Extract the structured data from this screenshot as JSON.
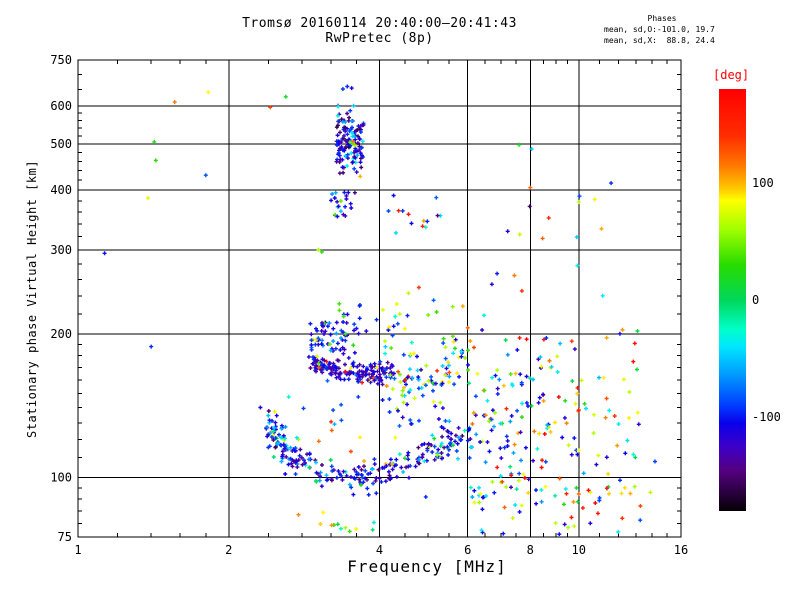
{
  "title": {
    "line1": "Tromsø 20160114 20:40:00–20:41:43",
    "line2": "RwPretec (8p)"
  },
  "stats": {
    "header": "Phases",
    "line1": "mean, sd,O:-101.0, 19.7",
    "line2": "mean, sd,X:  88.8, 24.4"
  },
  "chart_data": {
    "type": "scatter",
    "title": "Tromsø 20160114 20:40:00–20:41:43",
    "subtitle": "RwPretec (8p)",
    "xlabel": "Frequency [MHz]",
    "ylabel": "Stationary phase Virtual Height [km]",
    "x_scale": "log",
    "y_scale": "log",
    "xlim": [
      1,
      16
    ],
    "ylim": [
      75,
      750
    ],
    "x_major_ticks": [
      1,
      2,
      4,
      6,
      8,
      10,
      16
    ],
    "x_gridlines": [
      2,
      4,
      6,
      8,
      10
    ],
    "x_minor_ticks": [
      1.2,
      1.4,
      1.6,
      1.8,
      2.4,
      2.8,
      3.2,
      3.6,
      4.5,
      5,
      5.5,
      6.5,
      7,
      7.5,
      8.5,
      9,
      9.5,
      11,
      12,
      13,
      14,
      15
    ],
    "y_major_ticks": [
      75,
      100,
      200,
      300,
      400,
      500,
      600,
      750
    ],
    "y_gridlines": [
      100,
      200,
      300,
      400,
      500,
      600
    ],
    "y_minor_ticks": [
      80,
      85,
      90,
      95,
      110,
      120,
      130,
      140,
      150,
      160,
      170,
      180,
      190,
      220,
      240,
      260,
      280,
      320,
      340,
      360,
      380,
      420,
      440,
      460,
      480,
      520,
      540,
      560,
      580,
      650,
      700
    ],
    "grid": true,
    "frame_color": "#000000",
    "colorbar": {
      "label": "[deg]",
      "label_color": "#ff0000",
      "range": [
        -180,
        180
      ],
      "ticks": [
        {
          "value": 100,
          "label": "100"
        },
        {
          "value": 0,
          "label": "0"
        },
        {
          "value": -100,
          "label": "-100"
        }
      ]
    },
    "colormap_stops": [
      [
        -180,
        5,
        0,
        5
      ],
      [
        -165,
        40,
        0,
        60
      ],
      [
        -145,
        85,
        0,
        130
      ],
      [
        -125,
        60,
        0,
        200
      ],
      [
        -105,
        10,
        0,
        235
      ],
      [
        -90,
        0,
        60,
        255
      ],
      [
        -65,
        0,
        150,
        255
      ],
      [
        -40,
        0,
        230,
        255
      ],
      [
        -25,
        0,
        255,
        200
      ],
      [
        0,
        0,
        215,
        90
      ],
      [
        30,
        40,
        220,
        0
      ],
      [
        60,
        160,
        255,
        0
      ],
      [
        85,
        255,
        255,
        0
      ],
      [
        95,
        255,
        200,
        0
      ],
      [
        115,
        255,
        120,
        0
      ],
      [
        140,
        255,
        45,
        0
      ],
      [
        180,
        255,
        0,
        0
      ]
    ],
    "seed": 42,
    "clusters": [
      {
        "name": "lower-arc-trace",
        "type": "band",
        "n": 240,
        "path": [
          [
            2.38,
            133
          ],
          [
            2.52,
            118
          ],
          [
            2.72,
            108
          ],
          [
            3.0,
            103
          ],
          [
            3.35,
            100.5
          ],
          [
            3.75,
            100.5
          ],
          [
            4.15,
            103
          ],
          [
            4.6,
            108
          ],
          [
            5.1,
            113
          ],
          [
            5.6,
            119
          ],
          [
            6.1,
            124
          ]
        ],
        "f_jitter": 0.011,
        "h_jitter": 0.032,
        "phases": [
          [
            0.58,
            -125,
            -85
          ],
          [
            0.17,
            -155,
            -126
          ],
          [
            0.13,
            -70,
            -35
          ],
          [
            0.07,
            -25,
            25
          ],
          [
            0.05,
            55,
            105
          ]
        ]
      },
      {
        "name": "lower-arc-hook",
        "type": "blob",
        "n": 20,
        "f": [
          2.38,
          2.62
        ],
        "h": [
          115,
          136
        ],
        "phases": [
          [
            0.8,
            -125,
            -85
          ],
          [
            0.2,
            -70,
            -40
          ]
        ]
      },
      {
        "name": "mid-dense-band",
        "type": "band",
        "n": 175,
        "path": [
          [
            2.92,
            174
          ],
          [
            3.15,
            169
          ],
          [
            3.5,
            166
          ],
          [
            3.9,
            165
          ],
          [
            4.25,
            167
          ]
        ],
        "f_jitter": 0.009,
        "h_jitter": 0.022,
        "phases": [
          [
            0.62,
            -145,
            -105
          ],
          [
            0.28,
            -104,
            -78
          ],
          [
            0.06,
            30,
            90
          ],
          [
            0.04,
            120,
            175
          ]
        ]
      },
      {
        "name": "mid-rising-arc",
        "type": "band",
        "n": 85,
        "path": [
          [
            4.05,
            151
          ],
          [
            4.5,
            155
          ],
          [
            5.0,
            162
          ],
          [
            5.5,
            172
          ],
          [
            5.95,
            181
          ]
        ],
        "f_jitter": 0.014,
        "h_jitter": 0.05,
        "phases": [
          [
            0.38,
            -120,
            -82
          ],
          [
            0.14,
            -62,
            -30
          ],
          [
            0.2,
            20,
            70
          ],
          [
            0.2,
            70,
            110
          ],
          [
            0.08,
            115,
            170
          ]
        ]
      },
      {
        "name": "above-band-blob",
        "type": "blob",
        "n": 55,
        "f": [
          2.9,
          3.45
        ],
        "h": [
          184,
          212
        ],
        "phases": [
          [
            0.76,
            -132,
            -90
          ],
          [
            0.12,
            -85,
            -55
          ],
          [
            0.12,
            25,
            95
          ]
        ]
      },
      {
        "name": "above-band-right",
        "type": "blob",
        "n": 38,
        "f": [
          3.3,
          4.7
        ],
        "h": [
          178,
          232
        ],
        "phases": [
          [
            0.55,
            -125,
            -85
          ],
          [
            0.15,
            -60,
            -25
          ],
          [
            0.3,
            25,
            100
          ]
        ]
      },
      {
        "name": "spread-f-plume",
        "type": "blob",
        "n": 130,
        "f": [
          3.28,
          3.72
        ],
        "h": [
          398,
          648
        ],
        "bias_h": true,
        "phases": [
          [
            0.56,
            -125,
            -88
          ],
          [
            0.26,
            -162,
            -127
          ],
          [
            0.1,
            -62,
            -25
          ],
          [
            0.08,
            40,
            120
          ]
        ]
      },
      {
        "name": "plume-base",
        "type": "blob",
        "n": 22,
        "f": [
          3.2,
          3.62
        ],
        "h": [
          352,
          397
        ],
        "phases": [
          [
            0.7,
            -130,
            -90
          ],
          [
            0.15,
            -165,
            -135
          ],
          [
            0.08,
            30,
            85
          ],
          [
            0.07,
            -70,
            -40
          ]
        ]
      },
      {
        "name": "mid-right-scatter",
        "type": "blob",
        "n": 14,
        "f": [
          4.15,
          5.3
        ],
        "h": [
          322,
          400
        ],
        "phases": [
          [
            0.45,
            -120,
            -80
          ],
          [
            0.2,
            -60,
            -25
          ],
          [
            0.1,
            150,
            180
          ],
          [
            0.15,
            85,
            130
          ],
          [
            0.1,
            -162,
            -140
          ]
        ]
      },
      {
        "name": "between-arcs-right",
        "type": "blob",
        "n": 30,
        "f": [
          4.3,
          6.1
        ],
        "h": [
          108,
          145
        ],
        "phases": [
          [
            0.55,
            -120,
            -80
          ],
          [
            0.25,
            -70,
            -35
          ],
          [
            0.1,
            -20,
            25
          ],
          [
            0.1,
            60,
            100
          ]
        ]
      },
      {
        "name": "above-arc-left-sparse",
        "type": "blob",
        "n": 16,
        "f": [
          2.6,
          3.7
        ],
        "h": [
          112,
          148
        ],
        "phases": [
          [
            0.3,
            60,
            110
          ],
          [
            0.2,
            110,
            150
          ],
          [
            0.2,
            -60,
            -20
          ],
          [
            0.3,
            -110,
            -80
          ]
        ]
      },
      {
        "name": "right-broad-scatter",
        "type": "blob",
        "n": 150,
        "f": [
          6.0,
          13.2
        ],
        "h": [
          88,
          205
        ],
        "phases": [
          [
            0.3,
            -130,
            -85
          ],
          [
            0.15,
            -70,
            -30
          ],
          [
            0.12,
            -22,
            28
          ],
          [
            0.18,
            58,
            100
          ],
          [
            0.15,
            100,
            142
          ],
          [
            0.1,
            148,
            180
          ]
        ]
      },
      {
        "name": "right-mid-densify",
        "type": "blob",
        "n": 45,
        "f": [
          6.1,
          8.6
        ],
        "h": [
          112,
          168
        ],
        "phases": [
          [
            0.38,
            -125,
            -82
          ],
          [
            0.2,
            -62,
            -22
          ],
          [
            0.14,
            35,
            90
          ],
          [
            0.16,
            90,
            132
          ],
          [
            0.12,
            138,
            180
          ]
        ]
      },
      {
        "name": "below-100-left",
        "type": "blob",
        "n": 12,
        "f": [
          2.6,
          4.05
        ],
        "h": [
          77,
          86
        ],
        "phases": [
          [
            0.4,
            30,
            80
          ],
          [
            0.3,
            80,
            125
          ],
          [
            0.2,
            -45,
            10
          ],
          [
            0.1,
            -110,
            -80
          ]
        ]
      },
      {
        "name": "right-low-sparse",
        "type": "blob",
        "n": 40,
        "f": [
          5.9,
          13.5
        ],
        "h": [
          76,
          96
        ],
        "phases": [
          [
            0.25,
            -120,
            -80
          ],
          [
            0.15,
            -60,
            -20
          ],
          [
            0.15,
            -15,
            30
          ],
          [
            0.2,
            55,
            100
          ],
          [
            0.15,
            100,
            145
          ],
          [
            0.1,
            150,
            180
          ]
        ]
      },
      {
        "name": "upper-right-sparse",
        "type": "blob",
        "n": 15,
        "f": [
          6.4,
          12.6
        ],
        "h": [
          215,
          420
        ],
        "phases": [
          [
            0.35,
            -120,
            -80
          ],
          [
            0.2,
            -60,
            -20
          ],
          [
            0.2,
            60,
            110
          ],
          [
            0.15,
            110,
            160
          ],
          [
            0.1,
            -175,
            -145
          ]
        ]
      },
      {
        "name": "mid-sparse",
        "type": "blob",
        "n": 8,
        "f": [
          4.5,
          6.2
        ],
        "h": [
          200,
          258
        ],
        "phases": [
          [
            0.45,
            30,
            95
          ],
          [
            0.25,
            95,
            140
          ],
          [
            0.3,
            -120,
            -80
          ]
        ]
      }
    ],
    "points": [
      [
        1.13,
        295,
        -100
      ],
      [
        1.4,
        188,
        -95
      ],
      [
        1.42,
        505,
        25
      ],
      [
        1.43,
        462,
        28
      ],
      [
        1.38,
        385,
        78
      ],
      [
        1.56,
        612,
        115
      ],
      [
        1.82,
        642,
        85
      ],
      [
        1.8,
        430,
        -85
      ],
      [
        2.6,
        628,
        15
      ],
      [
        2.42,
        597,
        130
      ],
      [
        3.45,
        660,
        -95
      ],
      [
        3.52,
        655,
        -115
      ],
      [
        3.38,
        652,
        -90
      ],
      [
        7.6,
        498,
        15
      ],
      [
        8.05,
        488,
        -50
      ],
      [
        11.6,
        414,
        -95
      ],
      [
        8.0,
        405,
        122
      ],
      [
        7.98,
        370,
        -152
      ],
      [
        3.02,
        300,
        60
      ],
      [
        3.07,
        297,
        30
      ],
      [
        7.7,
        246,
        140
      ],
      [
        5.6,
        228,
        55
      ],
      [
        4.95,
        91,
        -95
      ],
      [
        14.2,
        108,
        -88
      ],
      [
        13.9,
        93,
        68
      ]
    ]
  }
}
